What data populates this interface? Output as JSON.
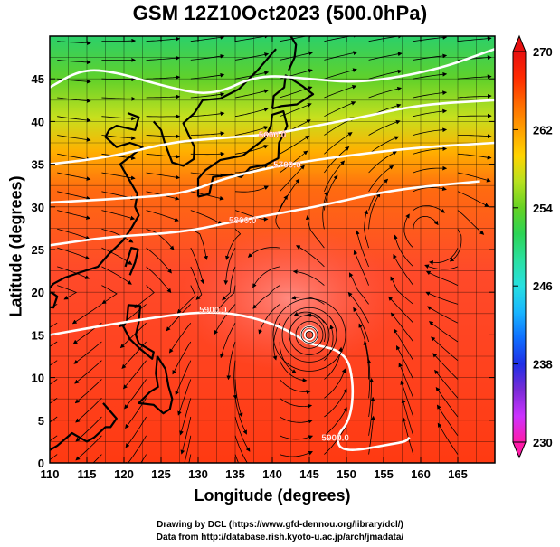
{
  "title": "GSM 12Z10Oct2023 (500.0hPa)",
  "x_axis": {
    "label": "Longitude (degrees)",
    "ticks": [
      "110",
      "115",
      "120",
      "125",
      "130",
      "135",
      "140",
      "145",
      "150",
      "155",
      "160",
      "165"
    ],
    "range": [
      110,
      170
    ]
  },
  "y_axis": {
    "label": "Latitude  (degrees)",
    "ticks": [
      "0",
      "5",
      "10",
      "15",
      "20",
      "25",
      "30",
      "35",
      "40",
      "45"
    ],
    "range": [
      0,
      50
    ]
  },
  "colorbar": {
    "labels": [
      "270",
      "262",
      "254",
      "246",
      "238",
      "230"
    ],
    "range": [
      230,
      270
    ],
    "colors": [
      "#ff1aa8",
      "#cc33ff",
      "#7a2bd6",
      "#1f2fe6",
      "#0f6fff",
      "#19b6ff",
      "#27e0e0",
      "#2be0a0",
      "#2cd455",
      "#66d223",
      "#b7e11f",
      "#ffd400",
      "#ffa000",
      "#ff6a00",
      "#ff2a00",
      "#e81010"
    ]
  },
  "contours": [
    {
      "label": "5900.0",
      "points": [
        [
          145,
          14
        ],
        [
          140,
          16.5
        ],
        [
          132,
          18
        ],
        [
          120,
          16.5
        ],
        [
          110,
          15
        ]
      ]
    },
    {
      "label": "5900.0",
      "points": [
        [
          145,
          14
        ],
        [
          150,
          13
        ],
        [
          151,
          9
        ],
        [
          150.5,
          5
        ],
        [
          148.5,
          3
        ],
        [
          149.5,
          1.2
        ],
        [
          156,
          2.2
        ],
        [
          158,
          2.5
        ],
        [
          158.5,
          3
        ]
      ]
    },
    {
      "label": "5800.0",
      "points": [
        [
          110,
          25.5
        ],
        [
          118,
          26.5
        ],
        [
          128,
          27
        ],
        [
          136,
          28.5
        ],
        [
          146,
          30
        ],
        [
          156,
          32
        ],
        [
          168,
          33
        ]
      ]
    },
    {
      "label": "5700.0",
      "points": [
        [
          110,
          30.5
        ],
        [
          120,
          31
        ],
        [
          128,
          31.5
        ],
        [
          134,
          33.5
        ],
        [
          142,
          35
        ],
        [
          150,
          36
        ],
        [
          160,
          37
        ],
        [
          170,
          37.5
        ]
      ]
    },
    {
      "label": "5600.0",
      "points": [
        [
          110,
          35
        ],
        [
          118,
          35.8
        ],
        [
          126,
          37.5
        ],
        [
          132,
          38
        ],
        [
          140,
          38.5
        ],
        [
          146,
          39.5
        ],
        [
          152,
          40.5
        ],
        [
          160,
          42
        ],
        [
          170,
          42.5
        ]
      ]
    },
    {
      "label": "",
      "points": [
        [
          110,
          44
        ],
        [
          114,
          46
        ],
        [
          118,
          46
        ],
        [
          126,
          44
        ],
        [
          132,
          43
        ],
        [
          138,
          45.5
        ],
        [
          145,
          45
        ],
        [
          152,
          44.5
        ],
        [
          162,
          46
        ],
        [
          170,
          48.5
        ]
      ]
    }
  ],
  "cyclone": {
    "center": [
      145,
      15
    ],
    "type": "typhoon"
  },
  "anticyclone": {
    "center": [
      160,
      27.5
    ]
  }
}
